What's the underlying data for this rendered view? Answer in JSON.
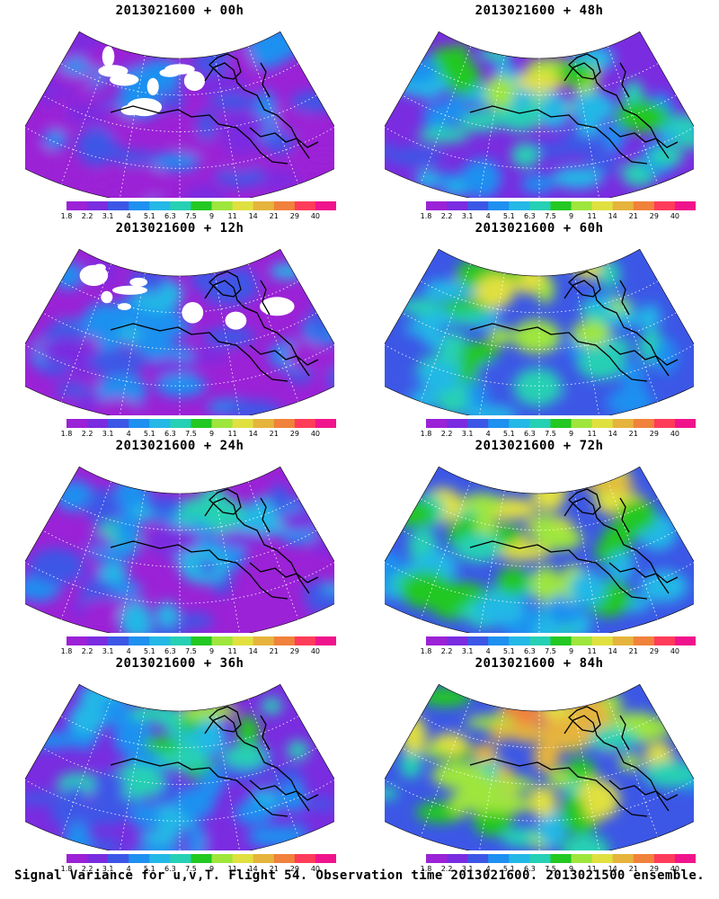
{
  "panels": [
    {
      "title": "2013021600 + 00h",
      "level": 0.18
    },
    {
      "title": "2013021600 + 48h",
      "level": 0.55
    },
    {
      "title": "2013021600 + 12h",
      "level": 0.24
    },
    {
      "title": "2013021600 + 60h",
      "level": 0.63
    },
    {
      "title": "2013021600 + 24h",
      "level": 0.34
    },
    {
      "title": "2013021600 + 72h",
      "level": 0.74
    },
    {
      "title": "2013021600 + 36h",
      "level": 0.45
    },
    {
      "title": "2013021600 + 84h",
      "level": 0.82
    }
  ],
  "colorbar": {
    "labels": [
      "1.8",
      "2.2",
      "3.1",
      "4",
      "5.1",
      "6.3",
      "7.5",
      "9",
      "11",
      "14",
      "21",
      "29",
      "40"
    ],
    "colors": [
      "#9b22d6",
      "#7a2ce0",
      "#3c57e6",
      "#1e90f0",
      "#24b8e6",
      "#26d0b4",
      "#23c823",
      "#9ee63c",
      "#e0e040",
      "#e6b43c",
      "#f0823c",
      "#ff3c5a",
      "#f0148c"
    ]
  },
  "map_colors": {
    "no_data": "#ffffff",
    "coastline": "#000000",
    "graticule": "#ffffff"
  },
  "caption": "Signal Variance for u,v,T. Flight 54. Observation time 2013021600. 2013021500 ensemble."
}
